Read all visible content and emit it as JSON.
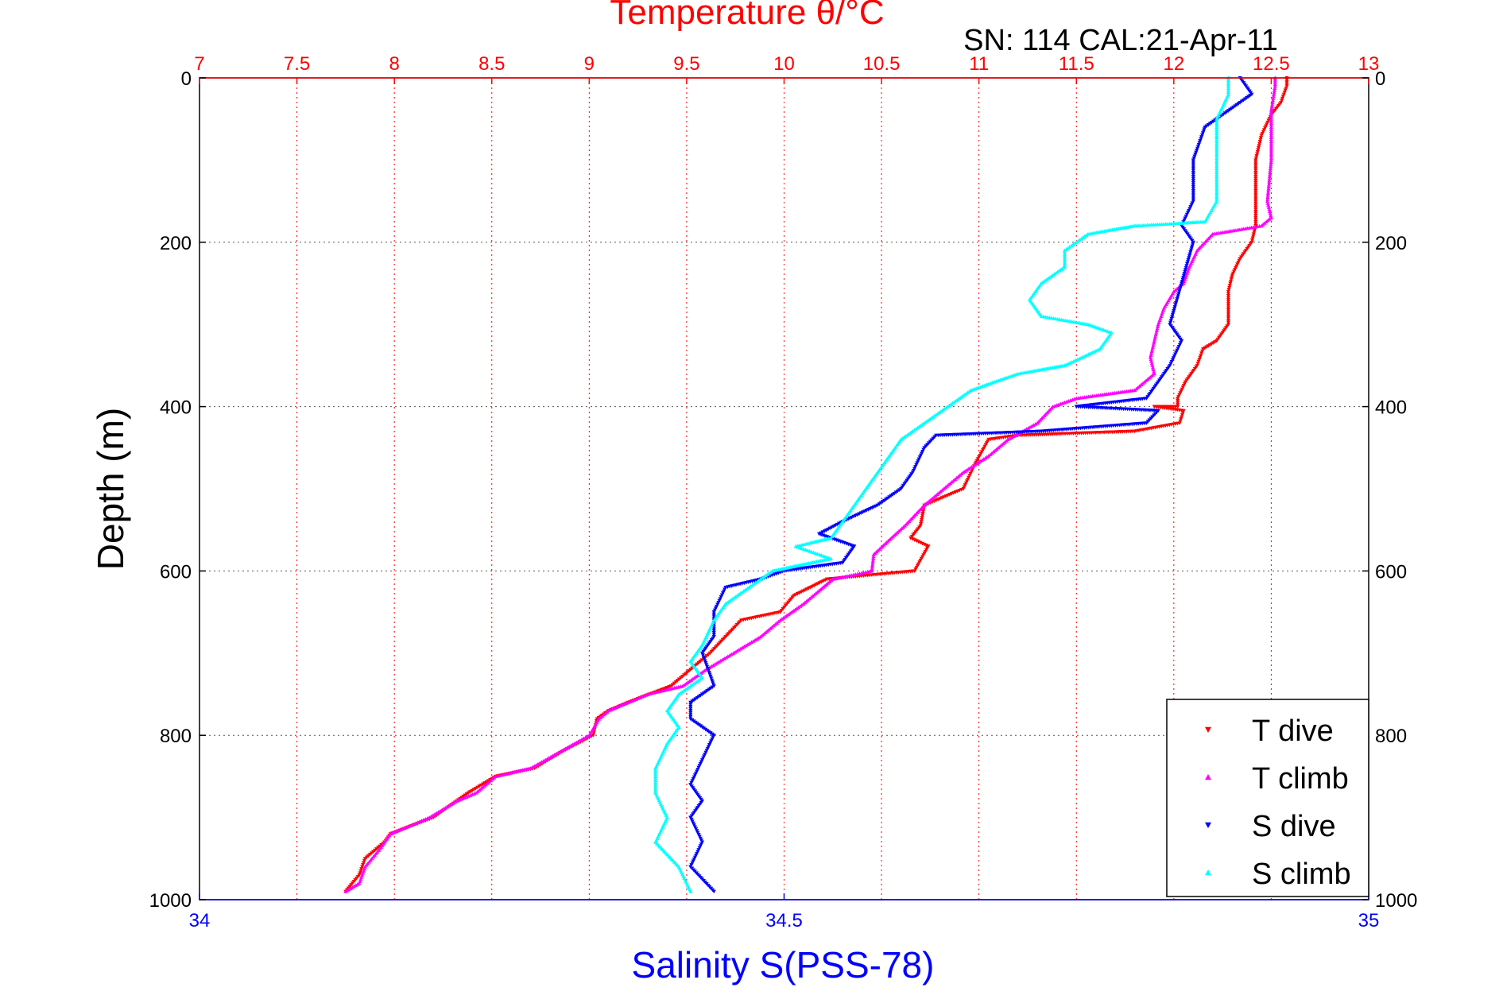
{
  "chart_data": {
    "type": "scatter",
    "title": "Temperature θ/°C",
    "subtitle": "SN: 114  CAL:21-Apr-11",
    "ylabel": "Depth (m)",
    "xlabel": "Salinity S(PSS-78)",
    "top_axis": {
      "label": "Temperature θ/°C",
      "range": [
        7,
        13
      ],
      "ticks": [
        "7",
        "7.5",
        "8",
        "8.5",
        "9",
        "9.5",
        "10",
        "10.5",
        "11",
        "11.5",
        "12",
        "12.5",
        "13"
      ],
      "color": "#ff0000"
    },
    "bottom_axis": {
      "label": "Salinity S(PSS-78)",
      "range": [
        34,
        35
      ],
      "ticks": [
        "34",
        "34.5",
        "35"
      ],
      "color": "#0000ff"
    },
    "y_axis": {
      "range": [
        0,
        1000
      ],
      "reversed": true,
      "ticks": [
        "0",
        "200",
        "400",
        "600",
        "800",
        "1000"
      ]
    },
    "grid": true,
    "legend_position": "bottom-right",
    "series": [
      {
        "name": "T dive",
        "axis": "temperature",
        "marker": "triangle-down",
        "color": "#ff0000",
        "points": [
          [
            12.58,
            0
          ],
          [
            12.58,
            10
          ],
          [
            12.55,
            30
          ],
          [
            12.5,
            45
          ],
          [
            12.45,
            70
          ],
          [
            12.42,
            100
          ],
          [
            12.42,
            130
          ],
          [
            12.42,
            150
          ],
          [
            12.42,
            180
          ],
          [
            12.4,
            200
          ],
          [
            12.34,
            220
          ],
          [
            12.3,
            240
          ],
          [
            12.28,
            260
          ],
          [
            12.28,
            300
          ],
          [
            12.22,
            320
          ],
          [
            12.15,
            330
          ],
          [
            12.12,
            350
          ],
          [
            12.06,
            370
          ],
          [
            12.02,
            390
          ],
          [
            12.02,
            400
          ],
          [
            11.9,
            400
          ],
          [
            12.05,
            405
          ],
          [
            12.03,
            420
          ],
          [
            11.8,
            430
          ],
          [
            11.2,
            435
          ],
          [
            11.05,
            440
          ],
          [
            10.98,
            470
          ],
          [
            10.92,
            500
          ],
          [
            10.72,
            520
          ],
          [
            10.7,
            545
          ],
          [
            10.65,
            560
          ],
          [
            10.74,
            570
          ],
          [
            10.67,
            600
          ],
          [
            10.22,
            610
          ],
          [
            10.05,
            630
          ],
          [
            9.98,
            650
          ],
          [
            9.78,
            660
          ],
          [
            9.62,
            700
          ],
          [
            9.52,
            720
          ],
          [
            9.42,
            740
          ],
          [
            9.2,
            760
          ],
          [
            9.1,
            770
          ],
          [
            9.04,
            780
          ],
          [
            9.02,
            800
          ],
          [
            8.86,
            820
          ],
          [
            8.72,
            840
          ],
          [
            8.52,
            850
          ],
          [
            8.38,
            870
          ],
          [
            8.32,
            880
          ],
          [
            8.2,
            900
          ],
          [
            7.98,
            920
          ],
          [
            7.95,
            930
          ],
          [
            7.85,
            950
          ],
          [
            7.82,
            970
          ],
          [
            7.75,
            990
          ]
        ]
      },
      {
        "name": "T climb",
        "axis": "temperature",
        "marker": "triangle-up",
        "color": "#ff00ff",
        "points": [
          [
            12.52,
            0
          ],
          [
            12.52,
            10
          ],
          [
            12.5,
            40
          ],
          [
            12.5,
            60
          ],
          [
            12.5,
            100
          ],
          [
            12.48,
            150
          ],
          [
            12.5,
            170
          ],
          [
            12.45,
            180
          ],
          [
            12.2,
            190
          ],
          [
            12.12,
            210
          ],
          [
            12.08,
            230
          ],
          [
            12.05,
            250
          ],
          [
            12.0,
            260
          ],
          [
            11.95,
            280
          ],
          [
            11.92,
            300
          ],
          [
            11.9,
            320
          ],
          [
            11.88,
            340
          ],
          [
            11.9,
            360
          ],
          [
            11.8,
            380
          ],
          [
            11.5,
            390
          ],
          [
            11.38,
            400
          ],
          [
            11.3,
            420
          ],
          [
            11.15,
            440
          ],
          [
            11.05,
            460
          ],
          [
            10.92,
            480
          ],
          [
            10.82,
            500
          ],
          [
            10.72,
            520
          ],
          [
            10.62,
            545
          ],
          [
            10.55,
            560
          ],
          [
            10.46,
            580
          ],
          [
            10.45,
            600
          ],
          [
            10.25,
            610
          ],
          [
            10.1,
            640
          ],
          [
            9.98,
            660
          ],
          [
            9.88,
            680
          ],
          [
            9.74,
            700
          ],
          [
            9.6,
            720
          ],
          [
            9.48,
            740
          ],
          [
            9.3,
            750
          ],
          [
            9.1,
            770
          ],
          [
            9.05,
            780
          ],
          [
            9.0,
            800
          ],
          [
            8.85,
            820
          ],
          [
            8.7,
            840
          ],
          [
            8.52,
            850
          ],
          [
            8.42,
            870
          ],
          [
            8.32,
            880
          ],
          [
            8.18,
            900
          ],
          [
            7.98,
            920
          ],
          [
            7.92,
            940
          ],
          [
            7.85,
            960
          ],
          [
            7.82,
            980
          ],
          [
            7.75,
            990
          ]
        ]
      },
      {
        "name": "S dive",
        "axis": "salinity",
        "marker": "triangle-down",
        "color": "#0000ff",
        "points": [
          [
            34.89,
            0
          ],
          [
            34.9,
            20
          ],
          [
            34.88,
            40
          ],
          [
            34.86,
            60
          ],
          [
            34.85,
            100
          ],
          [
            34.85,
            150
          ],
          [
            34.84,
            180
          ],
          [
            34.85,
            200
          ],
          [
            34.84,
            250
          ],
          [
            34.83,
            300
          ],
          [
            34.84,
            320
          ],
          [
            34.83,
            350
          ],
          [
            34.82,
            370
          ],
          [
            34.81,
            390
          ],
          [
            34.75,
            400
          ],
          [
            34.82,
            405
          ],
          [
            34.81,
            420
          ],
          [
            34.72,
            430
          ],
          [
            34.63,
            435
          ],
          [
            34.62,
            450
          ],
          [
            34.61,
            480
          ],
          [
            34.6,
            500
          ],
          [
            34.58,
            520
          ],
          [
            34.55,
            540
          ],
          [
            34.53,
            555
          ],
          [
            34.56,
            570
          ],
          [
            34.55,
            590
          ],
          [
            34.5,
            600
          ],
          [
            34.48,
            610
          ],
          [
            34.45,
            620
          ],
          [
            34.44,
            650
          ],
          [
            34.44,
            680
          ],
          [
            34.43,
            700
          ],
          [
            34.44,
            740
          ],
          [
            34.42,
            760
          ],
          [
            34.42,
            780
          ],
          [
            34.44,
            800
          ],
          [
            34.43,
            830
          ],
          [
            34.42,
            860
          ],
          [
            34.43,
            880
          ],
          [
            34.42,
            900
          ],
          [
            34.43,
            930
          ],
          [
            34.42,
            960
          ],
          [
            34.44,
            990
          ]
        ]
      },
      {
        "name": "S climb",
        "axis": "salinity",
        "marker": "triangle-up",
        "color": "#00ffff",
        "points": [
          [
            34.88,
            0
          ],
          [
            34.88,
            20
          ],
          [
            34.87,
            50
          ],
          [
            34.87,
            100
          ],
          [
            34.87,
            150
          ],
          [
            34.86,
            175
          ],
          [
            34.8,
            180
          ],
          [
            34.76,
            190
          ],
          [
            34.74,
            210
          ],
          [
            34.74,
            230
          ],
          [
            34.72,
            250
          ],
          [
            34.71,
            270
          ],
          [
            34.72,
            290
          ],
          [
            34.76,
            300
          ],
          [
            34.78,
            310
          ],
          [
            34.77,
            330
          ],
          [
            34.74,
            350
          ],
          [
            34.7,
            360
          ],
          [
            34.66,
            380
          ],
          [
            34.64,
            400
          ],
          [
            34.62,
            420
          ],
          [
            34.6,
            440
          ],
          [
            34.59,
            460
          ],
          [
            34.58,
            480
          ],
          [
            34.57,
            500
          ],
          [
            34.56,
            520
          ],
          [
            34.55,
            540
          ],
          [
            34.54,
            560
          ],
          [
            34.51,
            570
          ],
          [
            34.54,
            585
          ],
          [
            34.49,
            600
          ],
          [
            34.47,
            620
          ],
          [
            34.45,
            640
          ],
          [
            34.44,
            660
          ],
          [
            34.43,
            690
          ],
          [
            34.42,
            710
          ],
          [
            34.43,
            730
          ],
          [
            34.41,
            750
          ],
          [
            34.4,
            770
          ],
          [
            34.41,
            790
          ],
          [
            34.4,
            810
          ],
          [
            34.39,
            840
          ],
          [
            34.39,
            870
          ],
          [
            34.4,
            900
          ],
          [
            34.39,
            930
          ],
          [
            34.41,
            960
          ],
          [
            34.42,
            990
          ]
        ]
      }
    ]
  }
}
